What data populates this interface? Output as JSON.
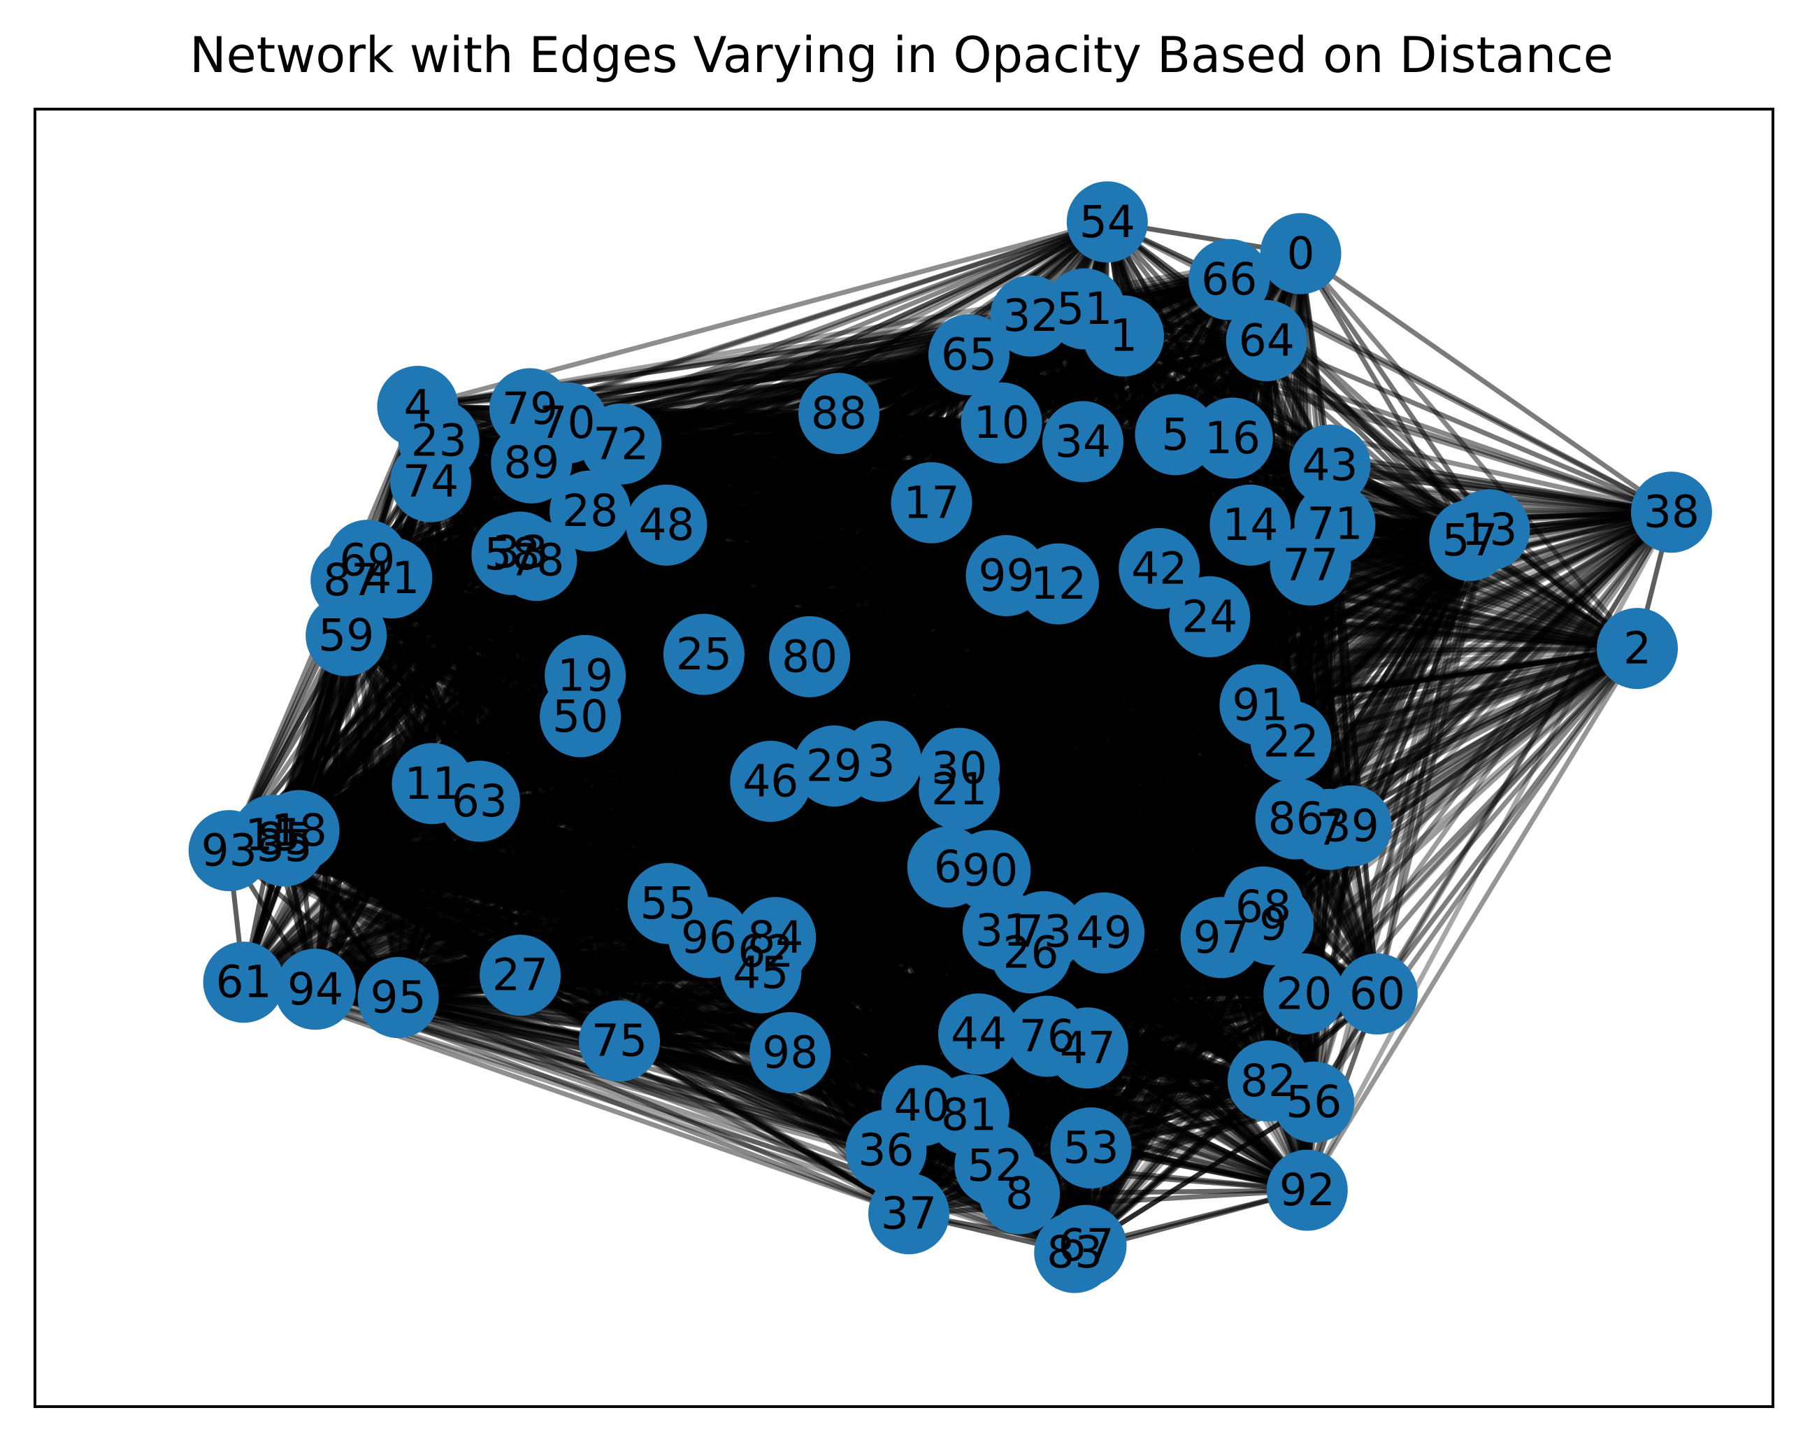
{
  "chart_data": {
    "type": "network",
    "title": "Network with Edges Varying in Opacity Based on Distance",
    "node_color": "#1f77b4",
    "edge_color": "#000000",
    "label_color": "#000000",
    "nodes": [
      {
        "id": "0",
        "x": 0.744,
        "y": 0.927
      },
      {
        "id": "1",
        "x": 0.635,
        "y": 0.857
      },
      {
        "id": "2",
        "x": 0.951,
        "y": 0.591
      },
      {
        "id": "3",
        "x": 0.486,
        "y": 0.495
      },
      {
        "id": "4",
        "x": 0.201,
        "y": 0.797
      },
      {
        "id": "5",
        "x": 0.667,
        "y": 0.773
      },
      {
        "id": "6",
        "x": 0.527,
        "y": 0.405
      },
      {
        "id": "7",
        "x": 0.762,
        "y": 0.437
      },
      {
        "id": "8",
        "x": 0.571,
        "y": 0.127
      },
      {
        "id": "9",
        "x": 0.727,
        "y": 0.356
      },
      {
        "id": "10",
        "x": 0.56,
        "y": 0.783
      },
      {
        "id": "11",
        "x": 0.21,
        "y": 0.476
      },
      {
        "id": "12",
        "x": 0.595,
        "y": 0.646
      },
      {
        "id": "13",
        "x": 0.86,
        "y": 0.692
      },
      {
        "id": "14",
        "x": 0.713,
        "y": 0.696
      },
      {
        "id": "15",
        "x": 0.112,
        "y": 0.432
      },
      {
        "id": "16",
        "x": 0.702,
        "y": 0.77
      },
      {
        "id": "17",
        "x": 0.517,
        "y": 0.715
      },
      {
        "id": "18",
        "x": 0.128,
        "y": 0.436
      },
      {
        "id": "19",
        "x": 0.304,
        "y": 0.568
      },
      {
        "id": "20",
        "x": 0.746,
        "y": 0.297
      },
      {
        "id": "21",
        "x": 0.534,
        "y": 0.471
      },
      {
        "id": "22",
        "x": 0.738,
        "y": 0.512
      },
      {
        "id": "23",
        "x": 0.214,
        "y": 0.768
      },
      {
        "id": "24",
        "x": 0.688,
        "y": 0.618
      },
      {
        "id": "25",
        "x": 0.377,
        "y": 0.586
      },
      {
        "id": "26",
        "x": 0.578,
        "y": 0.332
      },
      {
        "id": "27",
        "x": 0.264,
        "y": 0.313
      },
      {
        "id": "28",
        "x": 0.307,
        "y": 0.708
      },
      {
        "id": "29",
        "x": 0.457,
        "y": 0.491
      },
      {
        "id": "30",
        "x": 0.534,
        "y": 0.489
      },
      {
        "id": "31",
        "x": 0.561,
        "y": 0.351
      },
      {
        "id": "32",
        "x": 0.578,
        "y": 0.874
      },
      {
        "id": "33",
        "x": 0.264,
        "y": 0.673
      },
      {
        "id": "34",
        "x": 0.61,
        "y": 0.767
      },
      {
        "id": "35",
        "x": 0.119,
        "y": 0.423
      },
      {
        "id": "36",
        "x": 0.489,
        "y": 0.164
      },
      {
        "id": "37",
        "x": 0.503,
        "y": 0.11
      },
      {
        "id": "38",
        "x": 0.972,
        "y": 0.707
      },
      {
        "id": "39",
        "x": 0.775,
        "y": 0.44
      },
      {
        "id": "40",
        "x": 0.511,
        "y": 0.202
      },
      {
        "id": "41",
        "x": 0.185,
        "y": 0.651
      },
      {
        "id": "42",
        "x": 0.657,
        "y": 0.659
      },
      {
        "id": "43",
        "x": 0.762,
        "y": 0.747
      },
      {
        "id": "44",
        "x": 0.546,
        "y": 0.263
      },
      {
        "id": "45",
        "x": 0.412,
        "y": 0.315
      },
      {
        "id": "46",
        "x": 0.418,
        "y": 0.478
      },
      {
        "id": "47",
        "x": 0.613,
        "y": 0.251
      },
      {
        "id": "48",
        "x": 0.354,
        "y": 0.696
      },
      {
        "id": "49",
        "x": 0.623,
        "y": 0.349
      },
      {
        "id": "50",
        "x": 0.301,
        "y": 0.533
      },
      {
        "id": "51",
        "x": 0.611,
        "y": 0.88
      },
      {
        "id": "52",
        "x": 0.556,
        "y": 0.151
      },
      {
        "id": "53",
        "x": 0.615,
        "y": 0.166
      },
      {
        "id": "54",
        "x": 0.625,
        "y": 0.954
      },
      {
        "id": "55",
        "x": 0.355,
        "y": 0.374
      },
      {
        "id": "56",
        "x": 0.752,
        "y": 0.205
      },
      {
        "id": "57",
        "x": 0.848,
        "y": 0.683
      },
      {
        "id": "58",
        "x": 0.259,
        "y": 0.671
      },
      {
        "id": "59",
        "x": 0.157,
        "y": 0.602
      },
      {
        "id": "60",
        "x": 0.791,
        "y": 0.297
      },
      {
        "id": "61",
        "x": 0.094,
        "y": 0.307
      },
      {
        "id": "62",
        "x": 0.415,
        "y": 0.333
      },
      {
        "id": "63",
        "x": 0.239,
        "y": 0.461
      },
      {
        "id": "64",
        "x": 0.723,
        "y": 0.853
      },
      {
        "id": "65",
        "x": 0.54,
        "y": 0.841
      },
      {
        "id": "66",
        "x": 0.7,
        "y": 0.905
      },
      {
        "id": "67",
        "x": 0.612,
        "y": 0.083
      },
      {
        "id": "68",
        "x": 0.721,
        "y": 0.371
      },
      {
        "id": "69",
        "x": 0.17,
        "y": 0.666
      },
      {
        "id": "70",
        "x": 0.293,
        "y": 0.783
      },
      {
        "id": "71",
        "x": 0.765,
        "y": 0.697
      },
      {
        "id": "72",
        "x": 0.326,
        "y": 0.765
      },
      {
        "id": "73",
        "x": 0.586,
        "y": 0.35
      },
      {
        "id": "74",
        "x": 0.209,
        "y": 0.733
      },
      {
        "id": "75",
        "x": 0.325,
        "y": 0.257
      },
      {
        "id": "76",
        "x": 0.588,
        "y": 0.261
      },
      {
        "id": "77",
        "x": 0.75,
        "y": 0.662
      },
      {
        "id": "78",
        "x": 0.274,
        "y": 0.666
      },
      {
        "id": "79",
        "x": 0.27,
        "y": 0.795
      },
      {
        "id": "80",
        "x": 0.442,
        "y": 0.584
      },
      {
        "id": "81",
        "x": 0.54,
        "y": 0.194
      },
      {
        "id": "82",
        "x": 0.724,
        "y": 0.223
      },
      {
        "id": "83",
        "x": 0.605,
        "y": 0.077
      },
      {
        "id": "84",
        "x": 0.421,
        "y": 0.345
      },
      {
        "id": "85",
        "x": 0.119,
        "y": 0.429
      },
      {
        "id": "86",
        "x": 0.741,
        "y": 0.446
      },
      {
        "id": "87",
        "x": 0.16,
        "y": 0.649
      },
      {
        "id": "88",
        "x": 0.46,
        "y": 0.791
      },
      {
        "id": "89",
        "x": 0.271,
        "y": 0.749
      },
      {
        "id": "90",
        "x": 0.553,
        "y": 0.402
      },
      {
        "id": "91",
        "x": 0.719,
        "y": 0.543
      },
      {
        "id": "92",
        "x": 0.748,
        "y": 0.13
      },
      {
        "id": "93",
        "x": 0.085,
        "y": 0.419
      },
      {
        "id": "94",
        "x": 0.138,
        "y": 0.301
      },
      {
        "id": "95",
        "x": 0.189,
        "y": 0.294
      },
      {
        "id": "96",
        "x": 0.38,
        "y": 0.345
      },
      {
        "id": "97",
        "x": 0.695,
        "y": 0.345
      },
      {
        "id": "98",
        "x": 0.43,
        "y": 0.247
      },
      {
        "id": "99",
        "x": 0.563,
        "y": 0.653
      }
    ]
  }
}
